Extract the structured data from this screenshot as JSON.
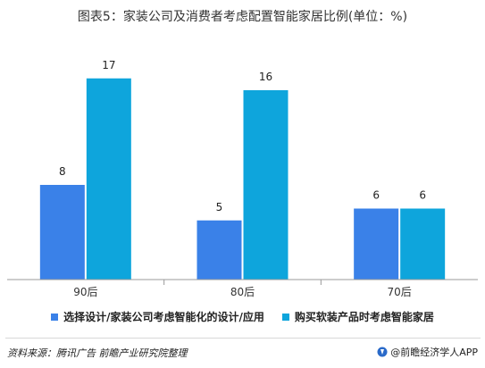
{
  "title": "图表5：家装公司及消费者考虑配置智能家居比例(单位：%)",
  "source": "资料来源：腾讯广告 前瞻产业研究院整理",
  "brand": "@前瞻经济学人APP",
  "chart_data": {
    "type": "bar",
    "categories": [
      "90后",
      "80后",
      "70后"
    ],
    "series": [
      {
        "name": "选择设计/家装公司考虑智能化的设计/应用",
        "values": [
          8,
          5,
          6
        ],
        "color": "#3a81e8"
      },
      {
        "name": "购买软装产品时考虑智能家居",
        "values": [
          17,
          16,
          6
        ],
        "color": "#0ea5dc"
      }
    ],
    "ylim": [
      0,
      20
    ],
    "grid": false,
    "legend_position": "bottom"
  }
}
